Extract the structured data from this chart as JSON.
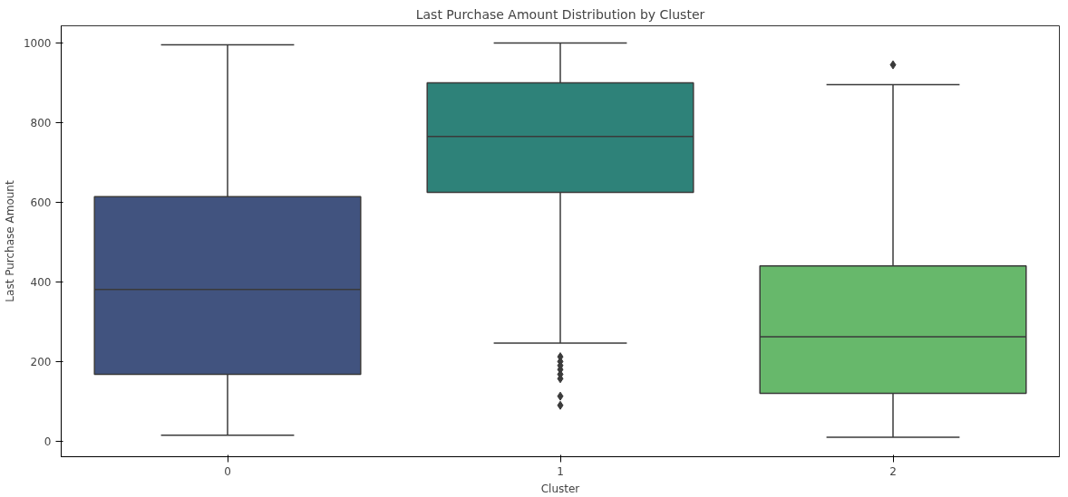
{
  "chart_data": {
    "type": "box",
    "title": "Last Purchase Amount Distribution by Cluster",
    "xlabel": "Cluster",
    "ylabel": "Last Purchase Amount",
    "categories": [
      "0",
      "1",
      "2"
    ],
    "colors": [
      "#41537f",
      "#2e8279",
      "#67b86b"
    ],
    "boxes": [
      {
        "low": 15,
        "q1": 168,
        "median": 381,
        "q3": 614,
        "high": 995
      },
      {
        "low": 246,
        "q1": 625,
        "median": 765,
        "q3": 900,
        "high": 1000,
        "outliers": [
          212,
          200,
          190,
          180,
          168,
          157,
          113,
          90
        ]
      },
      {
        "low": 10,
        "q1": 120,
        "median": 262,
        "q3": 440,
        "high": 895,
        "outliers": [
          945
        ]
      }
    ],
    "ylim": [
      -39,
      1043
    ],
    "yticks": [
      0,
      200,
      400,
      600,
      800,
      1000
    ],
    "grid": false,
    "marker": "diamond"
  }
}
